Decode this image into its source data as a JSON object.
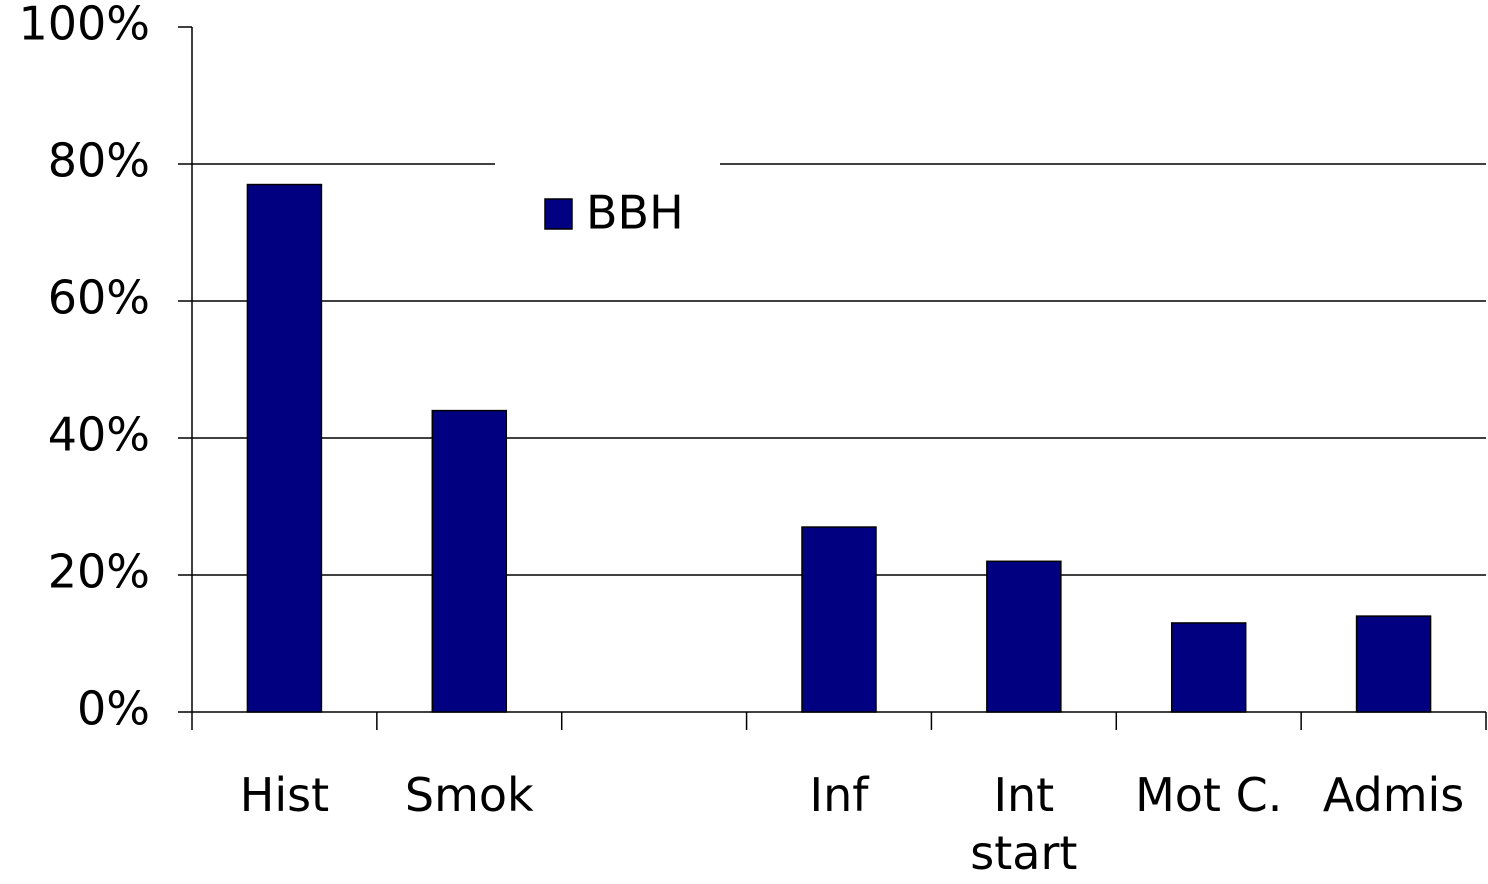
{
  "chart_data": {
    "type": "bar",
    "categories": [
      "Hist",
      "Smok",
      null,
      "Inf",
      "Int start",
      "Mot C.",
      "Admis"
    ],
    "series": [
      {
        "name": "BBH",
        "color": "#000080",
        "values": [
          77,
          44,
          null,
          27,
          22,
          13,
          14
        ]
      }
    ],
    "ylim": [
      0,
      100
    ],
    "yticks": [
      {
        "value": 0,
        "label": "0%"
      },
      {
        "value": 20,
        "label": "20%"
      },
      {
        "value": 40,
        "label": "40%"
      },
      {
        "value": 60,
        "label": "60%"
      },
      {
        "value": 80,
        "label": "80%"
      },
      {
        "value": 100,
        "label": "100%"
      }
    ],
    "grid": true,
    "legend": "top"
  }
}
